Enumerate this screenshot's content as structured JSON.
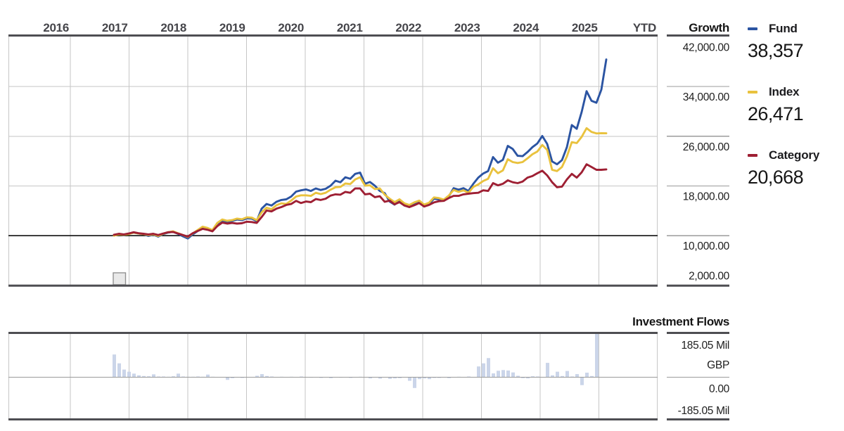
{
  "header": {
    "growth_title": "Growth",
    "flows_title": "Investment Flows"
  },
  "growth_axis": {
    "years": [
      "2016",
      "2017",
      "2018",
      "2019",
      "2020",
      "2021",
      "2022",
      "2023",
      "2024",
      "2025",
      "YTD"
    ],
    "scale_labels": [
      "42,000.00",
      "34,000.00",
      "26,000.00",
      "18,000.00",
      "10,000.00",
      "2,000.00"
    ],
    "scale_values": [
      42000,
      34000,
      26000,
      18000,
      10000,
      2000
    ]
  },
  "flows_axis": {
    "scale_labels": [
      "185.05 Mil",
      "GBP",
      "0.00",
      "-185.05 Mil"
    ],
    "max_label": "185.05 Mil",
    "currency": "GBP",
    "zero_label": "0.00",
    "min_label": "-185.05 Mil"
  },
  "legend": {
    "items": [
      {
        "name": "Fund",
        "value": "38,357",
        "color": "#2b54a2"
      },
      {
        "name": "Index",
        "value": "26,471",
        "color": "#e9c23e"
      },
      {
        "name": "Category",
        "value": "20,668",
        "color": "#9e1f33"
      }
    ]
  },
  "colors": {
    "fund": "#2b54a2",
    "index": "#e9c23e",
    "category": "#9e1f33",
    "bar": "#cbd5e9",
    "grid": "#c6c6c6",
    "axis": "#4e4e52",
    "baseline": "#111111",
    "zero_line": "#9a9a9a",
    "year_text": "#45454a",
    "scale_text": "#1e1e1e",
    "marker_fill": "#e9e9e9",
    "marker_stroke": "#919191"
  },
  "chart_data": [
    {
      "type": "line",
      "title": "Growth",
      "x_tick_labels": [
        "2016",
        "2017",
        "2018",
        "2019",
        "2020",
        "2021",
        "2022",
        "2023",
        "2024",
        "2025",
        "YTD"
      ],
      "x_start_year_frac": 2016.74,
      "x_step_months": 1,
      "ylim": [
        2000,
        43500
      ],
      "y_ticks": [
        2000,
        10000,
        18000,
        26000,
        34000,
        42000
      ],
      "baseline": 10000,
      "grid": true,
      "legend_position": "right",
      "series": [
        {
          "name": "Fund",
          "final": 38357,
          "color": "#2b54a2",
          "values": [
            10100,
            10250,
            10100,
            10300,
            10500,
            10350,
            10250,
            9950,
            10150,
            9850,
            10250,
            10500,
            10650,
            10300,
            9900,
            9550,
            10200,
            10750,
            11300,
            11100,
            10750,
            11900,
            12450,
            12250,
            12350,
            12600,
            12500,
            12800,
            12750,
            12350,
            14350,
            15100,
            14850,
            15450,
            15750,
            15850,
            16300,
            17100,
            17300,
            17450,
            17200,
            17600,
            17350,
            17550,
            18050,
            18850,
            18600,
            19400,
            19150,
            19950,
            20150,
            18350,
            18650,
            18050,
            17200,
            16850,
            15500,
            15000,
            15600,
            14850,
            14600,
            15050,
            15400,
            14700,
            15050,
            15950,
            15850,
            15650,
            16300,
            17650,
            17400,
            17650,
            17200,
            18350,
            19350,
            20000,
            20400,
            22650,
            21750,
            22200,
            24450,
            23950,
            22850,
            22800,
            23450,
            24250,
            24850,
            26050,
            24750,
            21950,
            21500,
            22150,
            24250,
            27800,
            27200,
            29900,
            33250,
            31700,
            31400,
            33500,
            38357
          ]
        },
        {
          "name": "Index",
          "final": 26471,
          "color": "#e9c23e",
          "values": [
            10000,
            10200,
            10150,
            10250,
            10500,
            10350,
            10250,
            10100,
            10200,
            9950,
            10300,
            10550,
            10700,
            10400,
            10100,
            9800,
            10350,
            10900,
            11450,
            11250,
            10900,
            12050,
            12600,
            12400,
            12500,
            12750,
            12650,
            12950,
            12900,
            12500,
            13750,
            14500,
            14250,
            14900,
            15200,
            15100,
            15650,
            16300,
            16500,
            16500,
            16400,
            16900,
            16700,
            16900,
            17400,
            17800,
            17850,
            18400,
            18300,
            19050,
            19400,
            18050,
            18100,
            17500,
            17600,
            16600,
            15950,
            15400,
            15850,
            15200,
            14950,
            15350,
            15650,
            15000,
            15300,
            16150,
            16050,
            15800,
            16450,
            17350,
            17050,
            17300,
            16900,
            17850,
            18250,
            18800,
            19150,
            20850,
            20050,
            20500,
            22300,
            21850,
            21700,
            21850,
            22450,
            23100,
            23550,
            24600,
            23800,
            20600,
            20400,
            21050,
            22750,
            25050,
            24900,
            25900,
            27300,
            26700,
            26450,
            26500,
            26471
          ]
        },
        {
          "name": "Category",
          "final": 20668,
          "color": "#9e1f33",
          "values": [
            10150,
            10300,
            10200,
            10350,
            10550,
            10400,
            10300,
            10200,
            10300,
            10100,
            10350,
            10550,
            10600,
            10350,
            10100,
            9850,
            10400,
            10750,
            11100,
            10950,
            10700,
            11550,
            12100,
            11950,
            12050,
            11950,
            12000,
            12250,
            12200,
            12050,
            13000,
            14050,
            13900,
            14350,
            14600,
            14950,
            15100,
            15600,
            15250,
            15500,
            15400,
            15900,
            15750,
            15950,
            16450,
            16650,
            16600,
            17050,
            16900,
            17600,
            17600,
            16650,
            16750,
            16200,
            16350,
            15450,
            15650,
            15050,
            15400,
            14850,
            14600,
            14900,
            15250,
            14700,
            14950,
            15350,
            15550,
            15600,
            16050,
            16400,
            16400,
            16650,
            16750,
            16850,
            16900,
            17300,
            17200,
            18450,
            18100,
            18350,
            18900,
            18600,
            18450,
            18700,
            19350,
            19600,
            20050,
            20450,
            19700,
            18600,
            17800,
            17900,
            19050,
            19950,
            19350,
            20200,
            21500,
            21050,
            20600,
            20600,
            20668
          ]
        }
      ]
    },
    {
      "type": "bar",
      "title": "Investment Flows",
      "unit": "Mil GBP",
      "ylim": [
        -185.05,
        185.05
      ],
      "y_ticks": [
        -185.05,
        0,
        185.05
      ],
      "bars": [
        [
          0,
          95
        ],
        [
          1,
          58
        ],
        [
          2,
          32
        ],
        [
          3,
          23
        ],
        [
          4,
          15
        ],
        [
          5,
          8
        ],
        [
          6,
          5
        ],
        [
          7,
          4
        ],
        [
          8,
          12
        ],
        [
          9,
          3
        ],
        [
          10,
          3
        ],
        [
          11,
          2
        ],
        [
          12,
          4
        ],
        [
          13,
          15
        ],
        [
          14,
          3
        ],
        [
          15,
          2
        ],
        [
          16,
          2
        ],
        [
          17,
          3
        ],
        [
          18,
          2
        ],
        [
          19,
          11
        ],
        [
          20,
          2
        ],
        [
          21,
          1
        ],
        [
          23,
          -11
        ],
        [
          24,
          -4
        ],
        [
          26,
          -3
        ],
        [
          29,
          6
        ],
        [
          30,
          13
        ],
        [
          31,
          5
        ],
        [
          32,
          3
        ],
        [
          34,
          2
        ],
        [
          36,
          2
        ],
        [
          38,
          3
        ],
        [
          40,
          -2
        ],
        [
          42,
          -3
        ],
        [
          44,
          -4
        ],
        [
          46,
          -2
        ],
        [
          48,
          -3
        ],
        [
          50,
          2
        ],
        [
          52,
          -5
        ],
        [
          54,
          -6
        ],
        [
          56,
          -7
        ],
        [
          57,
          -5
        ],
        [
          58,
          -4
        ],
        [
          60,
          -15
        ],
        [
          61,
          -45
        ],
        [
          62,
          -8
        ],
        [
          63,
          -5
        ],
        [
          64,
          -8
        ],
        [
          65,
          -3
        ],
        [
          66,
          -3
        ],
        [
          68,
          -4
        ],
        [
          70,
          2
        ],
        [
          72,
          3
        ],
        [
          74,
          45
        ],
        [
          75,
          58
        ],
        [
          76,
          80
        ],
        [
          77,
          16
        ],
        [
          78,
          27
        ],
        [
          79,
          30
        ],
        [
          80,
          28
        ],
        [
          81,
          20
        ],
        [
          82,
          6
        ],
        [
          83,
          -4
        ],
        [
          84,
          -5
        ],
        [
          85,
          4
        ],
        [
          86,
          3
        ],
        [
          88,
          60
        ],
        [
          89,
          8
        ],
        [
          90,
          23
        ],
        [
          91,
          5
        ],
        [
          92,
          26
        ],
        [
          93,
          3
        ],
        [
          94,
          13
        ],
        [
          95,
          -33
        ],
        [
          96,
          19
        ],
        [
          97,
          5
        ],
        [
          98,
          185.05
        ]
      ]
    }
  ]
}
